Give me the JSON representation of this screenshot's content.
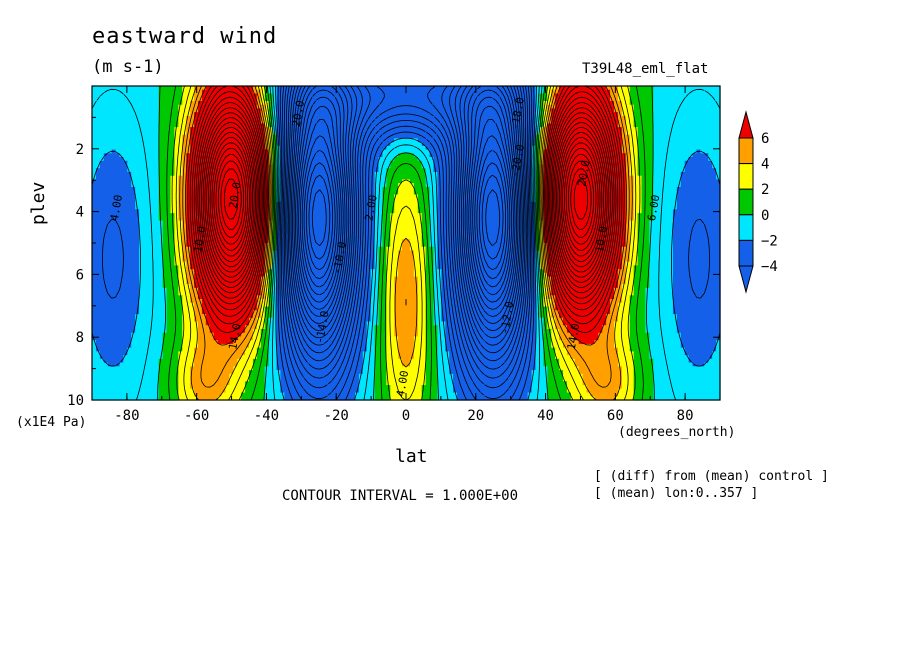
{
  "chart_data": {
    "type": "heatmap",
    "title": "eastward wind",
    "units": "(m s-1)",
    "run_label": "T39L48_eml_flat",
    "xlabel": "lat",
    "xunits": "(degrees_north)",
    "ylabel": "plev",
    "yscale_label": "(x1E4 Pa)",
    "xlim": [
      -90,
      90
    ],
    "ylim": [
      0,
      10
    ],
    "y_inverted": true,
    "xticks": [
      -80,
      -60,
      -40,
      -20,
      0,
      20,
      40,
      60,
      80
    ],
    "yticks": [
      2,
      4,
      6,
      8,
      10
    ],
    "contour_interval_text": "CONTOUR INTERVAL = 1.000E+00",
    "notes": [
      "[ (diff) from (mean) control ]",
      "[ (mean) lon:0..357 ]"
    ],
    "colorbar": {
      "levels": [
        -4,
        -2,
        0,
        2,
        4,
        6
      ],
      "colors": [
        "#1560e8",
        "#00e6ff",
        "#00c800",
        "#ffff00",
        "#ffa000",
        "#ee0000"
      ],
      "extend": "both"
    },
    "contour_labels": [
      {
        "text": "4.00",
        "x": -82,
        "y": 3.9
      },
      {
        "text": "20.0",
        "x": -48,
        "y": 3.5
      },
      {
        "text": "10.0",
        "x": -58,
        "y": 4.9
      },
      {
        "text": "14.0",
        "x": -48,
        "y": 8.0
      },
      {
        "text": "-20.0",
        "x": -30,
        "y": 1.0
      },
      {
        "text": "-14.0",
        "x": -23,
        "y": 7.7
      },
      {
        "text": "-10.0",
        "x": -18,
        "y": 5.5
      },
      {
        "text": "4.00",
        "x": 0,
        "y": 9.5
      },
      {
        "text": "2.00",
        "x": -9,
        "y": 3.9
      },
      {
        "text": "-18.0",
        "x": 33,
        "y": 0.9
      },
      {
        "text": "-12.0",
        "x": 30,
        "y": 7.4
      },
      {
        "text": "-20.0",
        "x": 33,
        "y": 2.4
      },
      {
        "text": "20.0",
        "x": 52,
        "y": 2.8
      },
      {
        "text": "14.0",
        "x": 49,
        "y": 8.0
      },
      {
        "text": "10.0",
        "x": 57,
        "y": 4.9
      },
      {
        "text": "6.00",
        "x": 72,
        "y": 3.9
      }
    ]
  }
}
